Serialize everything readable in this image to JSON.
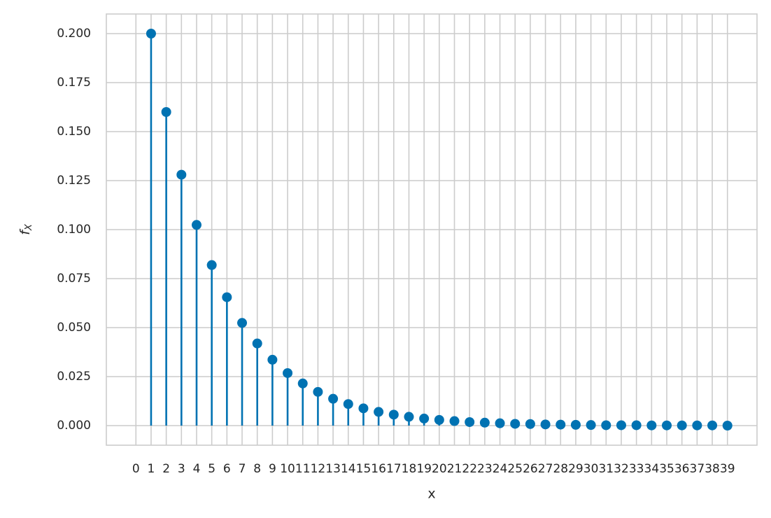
{
  "chart_data": {
    "type": "stem",
    "xlabel": "x",
    "ylabel": {
      "base": "f",
      "sub": "X"
    },
    "x": [
      1,
      2,
      3,
      4,
      5,
      6,
      7,
      8,
      9,
      10,
      11,
      12,
      13,
      14,
      15,
      16,
      17,
      18,
      19,
      20,
      21,
      22,
      23,
      24,
      25,
      26,
      27,
      28,
      29,
      30,
      31,
      32,
      33,
      34,
      35,
      36,
      37,
      38,
      39
    ],
    "series": [
      {
        "color": "#0072b2",
        "values": [
          0.2,
          0.16,
          0.128,
          0.1024,
          0.0819,
          0.0655,
          0.0524,
          0.0419,
          0.0336,
          0.0268,
          0.0215,
          0.0172,
          0.0137,
          0.011,
          0.0088,
          0.007,
          0.0056,
          0.0045,
          0.0036,
          0.0029,
          0.0023,
          0.0018,
          0.0015,
          0.0012,
          0.0009,
          0.0008,
          0.0006,
          0.0005,
          0.0004,
          0.0003,
          0.0002,
          0.0002,
          0.0002,
          0.0001,
          0.0001,
          0.0001,
          0.0001,
          0.0001,
          0.0
        ]
      }
    ],
    "xlim": [
      -1.95,
      40.95
    ],
    "xticks": [
      0,
      1,
      2,
      3,
      4,
      5,
      6,
      7,
      8,
      9,
      10,
      11,
      12,
      13,
      14,
      15,
      16,
      17,
      18,
      19,
      20,
      21,
      22,
      23,
      24,
      25,
      26,
      27,
      28,
      29,
      30,
      31,
      32,
      33,
      34,
      35,
      36,
      37,
      38,
      39
    ],
    "ylim": [
      -0.01,
      0.21
    ],
    "yticks": [
      {
        "value": 0,
        "label": "0.000"
      },
      {
        "value": 0.025,
        "label": "0.025"
      },
      {
        "value": 0.05,
        "label": "0.050"
      },
      {
        "value": 0.075,
        "label": "0.075"
      },
      {
        "value": 0.1,
        "label": "0.100"
      },
      {
        "value": 0.125,
        "label": "0.125"
      },
      {
        "value": 0.15,
        "label": "0.150"
      },
      {
        "value": 0.175,
        "label": "0.175"
      },
      {
        "value": 0.2,
        "label": "0.200"
      }
    ],
    "grid": true
  }
}
